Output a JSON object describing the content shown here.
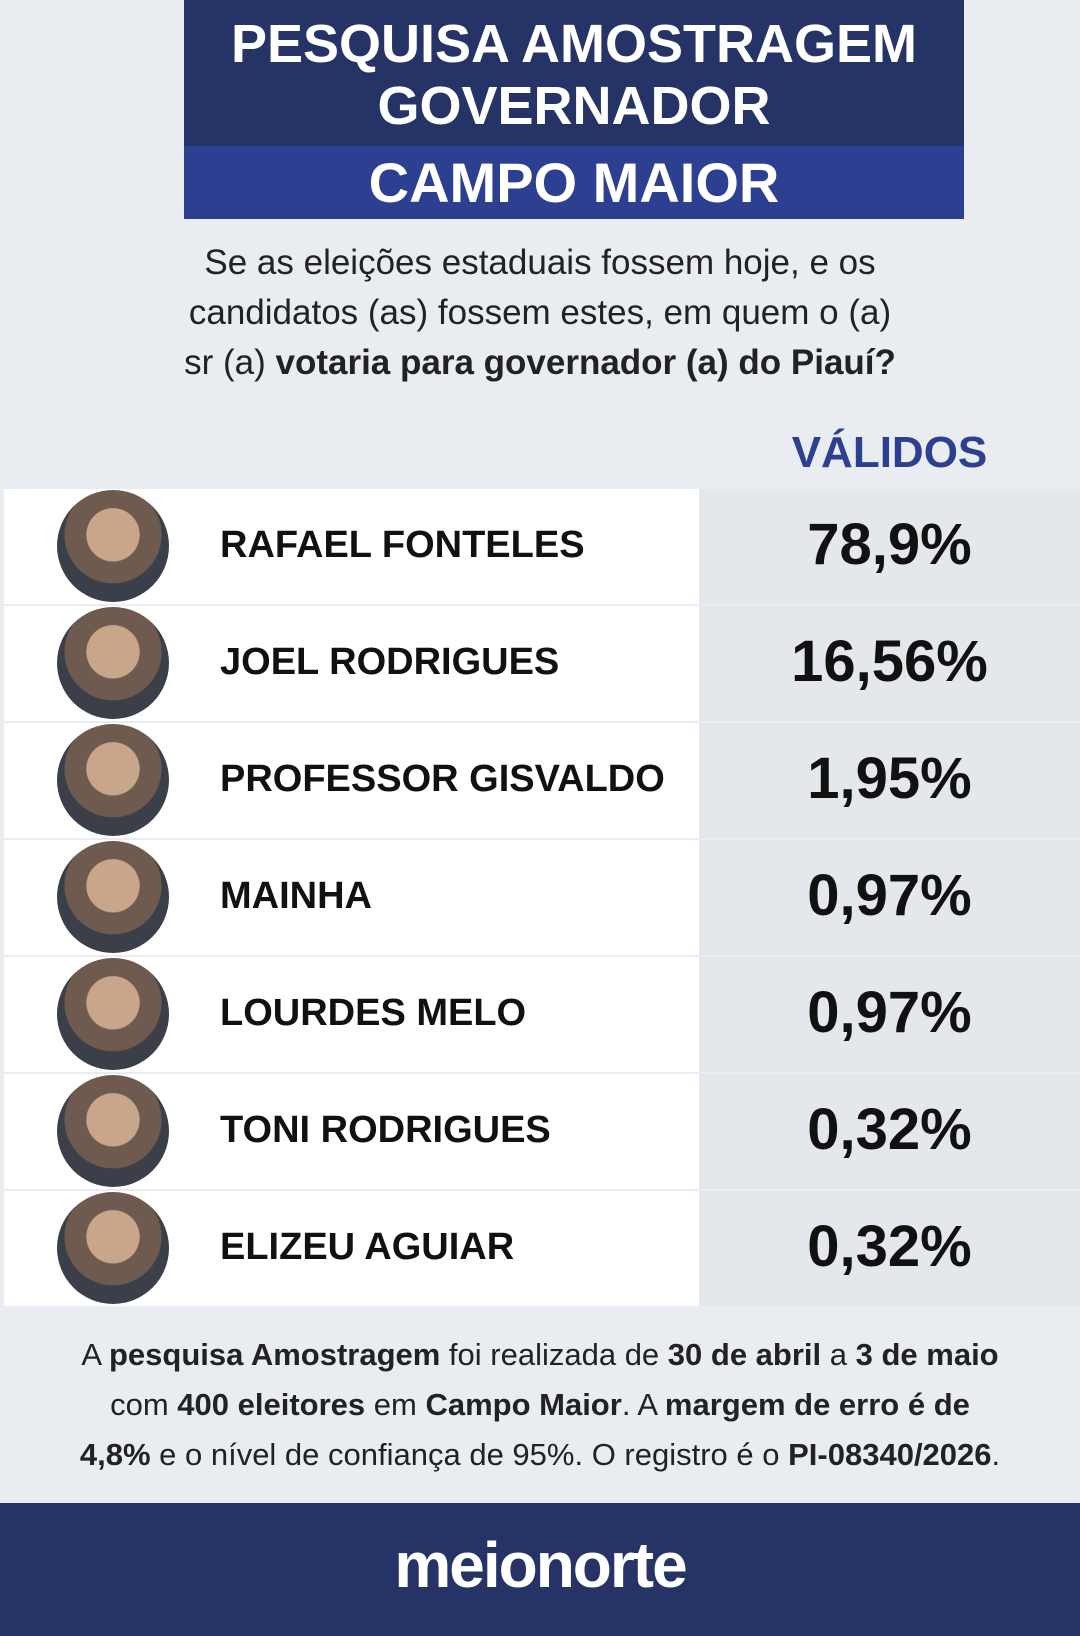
{
  "header": {
    "title_lines": [
      "PESQUISA AMOSTRAGEM",
      "GOVERNADOR"
    ],
    "subtitle": "CAMPO MAIOR"
  },
  "question": [
    [
      {
        "text": "Se as eleições estaduais fossem hoje, e os",
        "bold": false
      }
    ],
    [
      {
        "text": "candidatos (as) fossem estes, em quem o (a)",
        "bold": false
      }
    ],
    [
      {
        "text": "sr (a) ",
        "bold": false
      },
      {
        "text": "votaria para governador (a) do Piauí?",
        "bold": true
      }
    ]
  ],
  "table": {
    "column_header": "VÁLIDOS",
    "rows": [
      {
        "name": "RAFAEL FONTELES",
        "value": "78,9%"
      },
      {
        "name": "JOEL RODRIGUES",
        "value": "16,56%"
      },
      {
        "name": "PROFESSOR GISVALDO",
        "value": "1,95%"
      },
      {
        "name": "MAINHA",
        "value": "0,97%"
      },
      {
        "name": "LOURDES MELO",
        "value": "0,97%"
      },
      {
        "name": "TONI RODRIGUES",
        "value": "0,32%"
      },
      {
        "name": "ELIZEU AGUIAR",
        "value": "0,32%"
      }
    ]
  },
  "note": [
    [
      {
        "text": "A ",
        "bold": false
      },
      {
        "text": "pesquisa Amostragem",
        "bold": true
      },
      {
        "text": " foi realizada de ",
        "bold": false
      },
      {
        "text": "30 de abril",
        "bold": true
      },
      {
        "text": " a ",
        "bold": false
      },
      {
        "text": "3 de maio",
        "bold": true
      }
    ],
    [
      {
        "text": "com ",
        "bold": false
      },
      {
        "text": "400 eleitores",
        "bold": true
      },
      {
        "text": " em ",
        "bold": false
      },
      {
        "text": "Campo Maior",
        "bold": true
      },
      {
        "text": ". A ",
        "bold": false
      },
      {
        "text": "margem de erro é de",
        "bold": true
      }
    ],
    [
      {
        "text": "4,8%",
        "bold": true
      },
      {
        "text": " e o nível de confiança de 95%. O registro é o ",
        "bold": false
      },
      {
        "text": "PI-08340/2026",
        "bold": true
      },
      {
        "text": ".",
        "bold": false
      }
    ]
  ],
  "footer": {
    "brand": "meionorte"
  }
}
